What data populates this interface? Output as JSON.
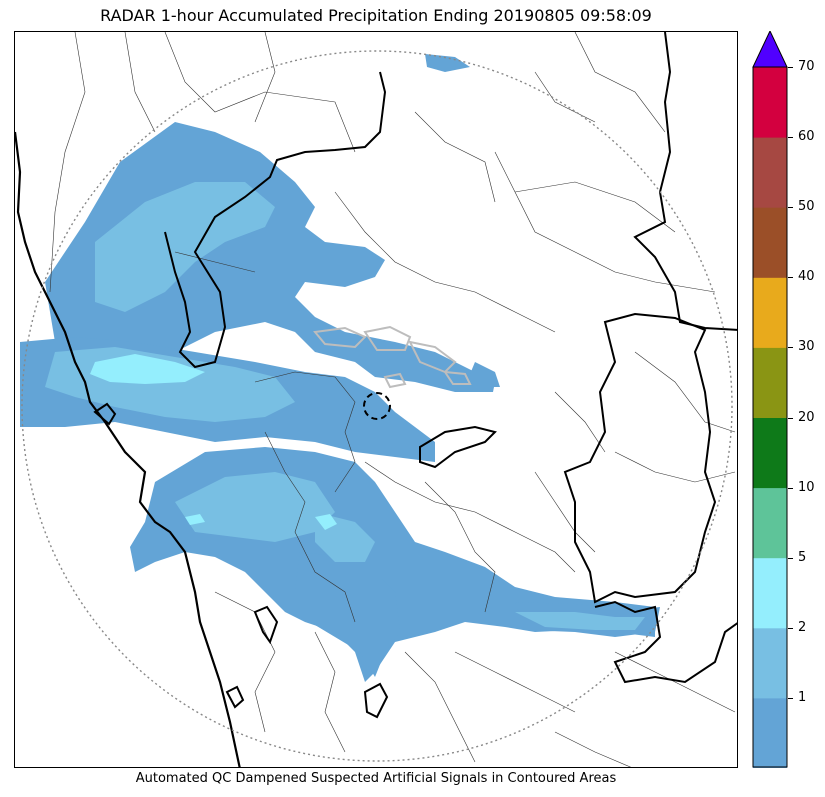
{
  "title": "RADAR 1-hour Accumulated Precipitation Ending 20190805 09:58:09",
  "caption": "Automated QC Dampened Suspected Artificial Signals in Contoured Areas",
  "legend": {
    "bands": [
      {
        "from": 0,
        "to": 1,
        "color": "#63a4d6"
      },
      {
        "from": 1,
        "to": 2,
        "color": "#78bfe3"
      },
      {
        "from": 2,
        "to": 5,
        "color": "#94eefd"
      },
      {
        "from": 5,
        "to": 10,
        "color": "#5ec499"
      },
      {
        "from": 10,
        "to": 20,
        "color": "#0e7a19"
      },
      {
        "from": 20,
        "to": 30,
        "color": "#8a9514"
      },
      {
        "from": 30,
        "to": 40,
        "color": "#e8aa1c"
      },
      {
        "from": 40,
        "to": 50,
        "color": "#9b4f28"
      },
      {
        "from": 50,
        "to": 60,
        "color": "#a64842"
      },
      {
        "from": 60,
        "to": 70,
        "color": "#d3003f"
      }
    ],
    "extend_color": "#5000ff",
    "tick_labels": [
      "1",
      "2",
      "5",
      "10",
      "20",
      "30",
      "40",
      "50",
      "60",
      "70"
    ]
  },
  "layers": {
    "range_ring": "dotted",
    "radar_site": "dashed-circle",
    "qc_contour_color": "#bdbdbd"
  }
}
